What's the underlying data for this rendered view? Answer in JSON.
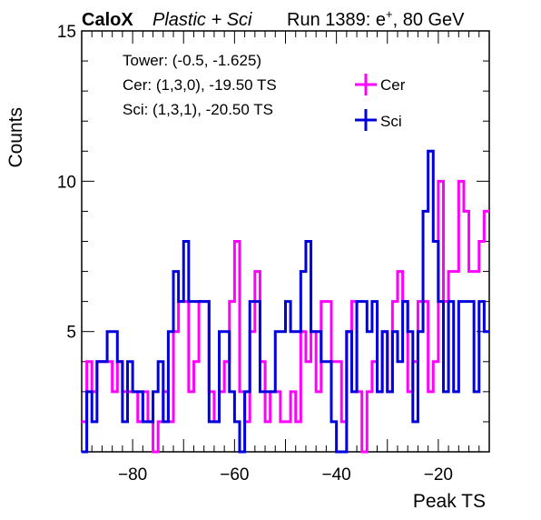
{
  "header": {
    "brand": "CaloX",
    "subtitle": "Plastic + Sci",
    "run_info": "Run 1389: e",
    "run_sup": "+",
    "run_energy": ", 80 GeV"
  },
  "annotations": {
    "tower": "Tower: (-0.5, -1.625)",
    "cer_channel": "Cer: (1,3,0), -19.50 TS",
    "sci_channel": "Sci: (1,3,1), -20.50 TS"
  },
  "colors": {
    "cer": "#ff00ff",
    "sci": "#0000dd",
    "axis": "#000000"
  },
  "chart_data": {
    "type": "histogram-step",
    "xlabel": "Peak TS",
    "ylabel": "Counts",
    "xlim": [
      -90,
      -10
    ],
    "ylim": [
      1,
      15
    ],
    "x_ticks": [
      -80,
      -60,
      -40,
      -20
    ],
    "x_tick_labels": [
      "−80",
      "−60",
      "−40",
      "−20"
    ],
    "y_ticks": [
      5,
      10,
      15
    ],
    "y_tick_labels": [
      "5",
      "10",
      "15"
    ],
    "bin_width": 1,
    "bin_edges_start": -90,
    "legend": {
      "placement": "top-right",
      "entries": [
        "Cer",
        "Sci"
      ]
    },
    "series": [
      {
        "name": "Cer",
        "values": [
          2,
          4,
          3,
          4,
          4,
          4,
          3,
          4,
          3,
          3,
          3,
          2,
          3,
          2,
          1,
          2,
          3,
          2,
          5,
          6,
          6,
          3,
          4,
          6,
          6,
          3,
          2,
          3,
          4,
          6,
          8,
          3,
          2,
          5,
          7,
          4,
          2,
          3,
          3,
          2,
          2,
          3,
          2,
          5,
          4,
          5,
          3,
          6,
          6,
          4,
          4,
          2,
          5,
          6,
          3,
          1,
          3,
          4,
          3,
          5,
          3,
          6,
          7,
          6,
          3,
          4,
          6,
          6,
          3,
          4,
          10,
          6,
          7,
          7,
          10,
          9,
          7,
          7,
          8,
          9
        ]
      },
      {
        "name": "Sci",
        "values": [
          1,
          3,
          2,
          4,
          4,
          5,
          5,
          4,
          2,
          4,
          3,
          3,
          2,
          2,
          3,
          4,
          2,
          5,
          7,
          6,
          8,
          6,
          6,
          6,
          6,
          2,
          2,
          5,
          5,
          3,
          2,
          1,
          3,
          6,
          6,
          3,
          3,
          3,
          5,
          5,
          6,
          5,
          5,
          7,
          8,
          5,
          5,
          4,
          4,
          2,
          1,
          1,
          5,
          3,
          6,
          6,
          5,
          6,
          3,
          5,
          3,
          5,
          4,
          6,
          5,
          2,
          5,
          9,
          11,
          8,
          6,
          3,
          6,
          3,
          6,
          6,
          6,
          3,
          6,
          5
        ]
      }
    ]
  }
}
